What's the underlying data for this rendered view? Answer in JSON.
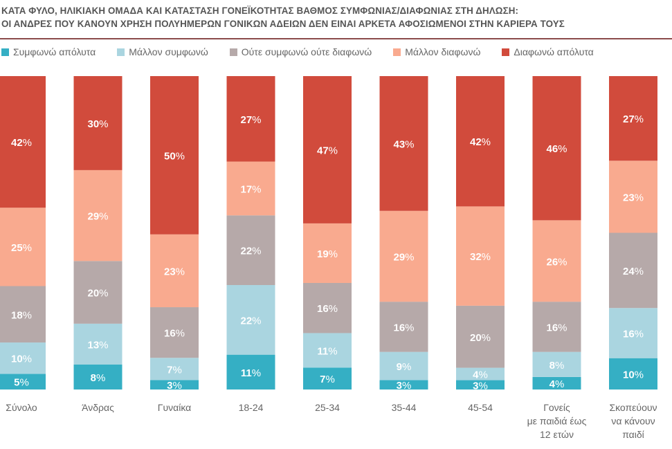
{
  "chart_data": {
    "type": "bar",
    "stacked": true,
    "title": "ΚΑΤΑ ΦΥΛΟ, ΗΛΙΚΙΑΚΗ ΟΜΑΔΑ ΚΑΙ ΚΑΤΑΣΤΑΣΗ ΓΟΝΕΪΚΟΤΗΤΑΣ ΒΑΘΜΟΣ ΣΥΜΦΩΝΙΑΣ/ΔΙΑΦΩΝΙΑΣ ΣΤΗ ΔΗΛΩΣΗ:",
    "subtitle": "ΟΙ ΑΝΔΡΕΣ ΠΟΥ ΚΑΝΟΥΝ ΧΡΗΣΗ ΠΟΛΥΗΜΕΡΩΝ ΓΟΝΙΚΩΝ ΑΔΕΙΩΝ ΔΕΝ ΕΙΝΑΙ ΑΡΚΕΤΑ ΑΦΟΣΙΩΜΕΝΟΙ ΣΤΗΝ ΚΑΡΙΕΡΑ ΤΟΥΣ",
    "legend_position": "top",
    "unit": "%",
    "categories": [
      [
        "Σύνολο"
      ],
      [
        "Άνδρας"
      ],
      [
        "Γυναίκα"
      ],
      [
        "18-24"
      ],
      [
        "25-34"
      ],
      [
        "35-44"
      ],
      [
        "45-54"
      ],
      [
        "Γονείς",
        "με παιδιά έως",
        "12 ετών"
      ],
      [
        "Σκοπεύουν",
        "να κάνουν",
        "παιδί"
      ]
    ],
    "series": [
      {
        "name": "Συμφωνώ απόλυτα",
        "color": "#35afc4",
        "values": [
          5,
          8,
          3,
          11,
          7,
          3,
          3,
          4,
          10
        ]
      },
      {
        "name": "Μάλλον συμφωνώ",
        "color": "#aad5e0",
        "values": [
          10,
          13,
          7,
          22,
          11,
          9,
          4,
          8,
          16
        ]
      },
      {
        "name": "Ούτε συμφωνώ ούτε διαφωνώ",
        "color": "#b6a9a9",
        "values": [
          18,
          20,
          16,
          22,
          16,
          16,
          20,
          16,
          24
        ]
      },
      {
        "name": "Μάλλον διαφωνώ",
        "color": "#f9aa8f",
        "values": [
          25,
          29,
          23,
          17,
          19,
          29,
          32,
          26,
          23
        ]
      },
      {
        "name": "Διαφωνώ απόλυτα",
        "color": "#d14b3c",
        "values": [
          42,
          30,
          50,
          27,
          47,
          43,
          42,
          46,
          27
        ]
      }
    ],
    "grid": false
  }
}
